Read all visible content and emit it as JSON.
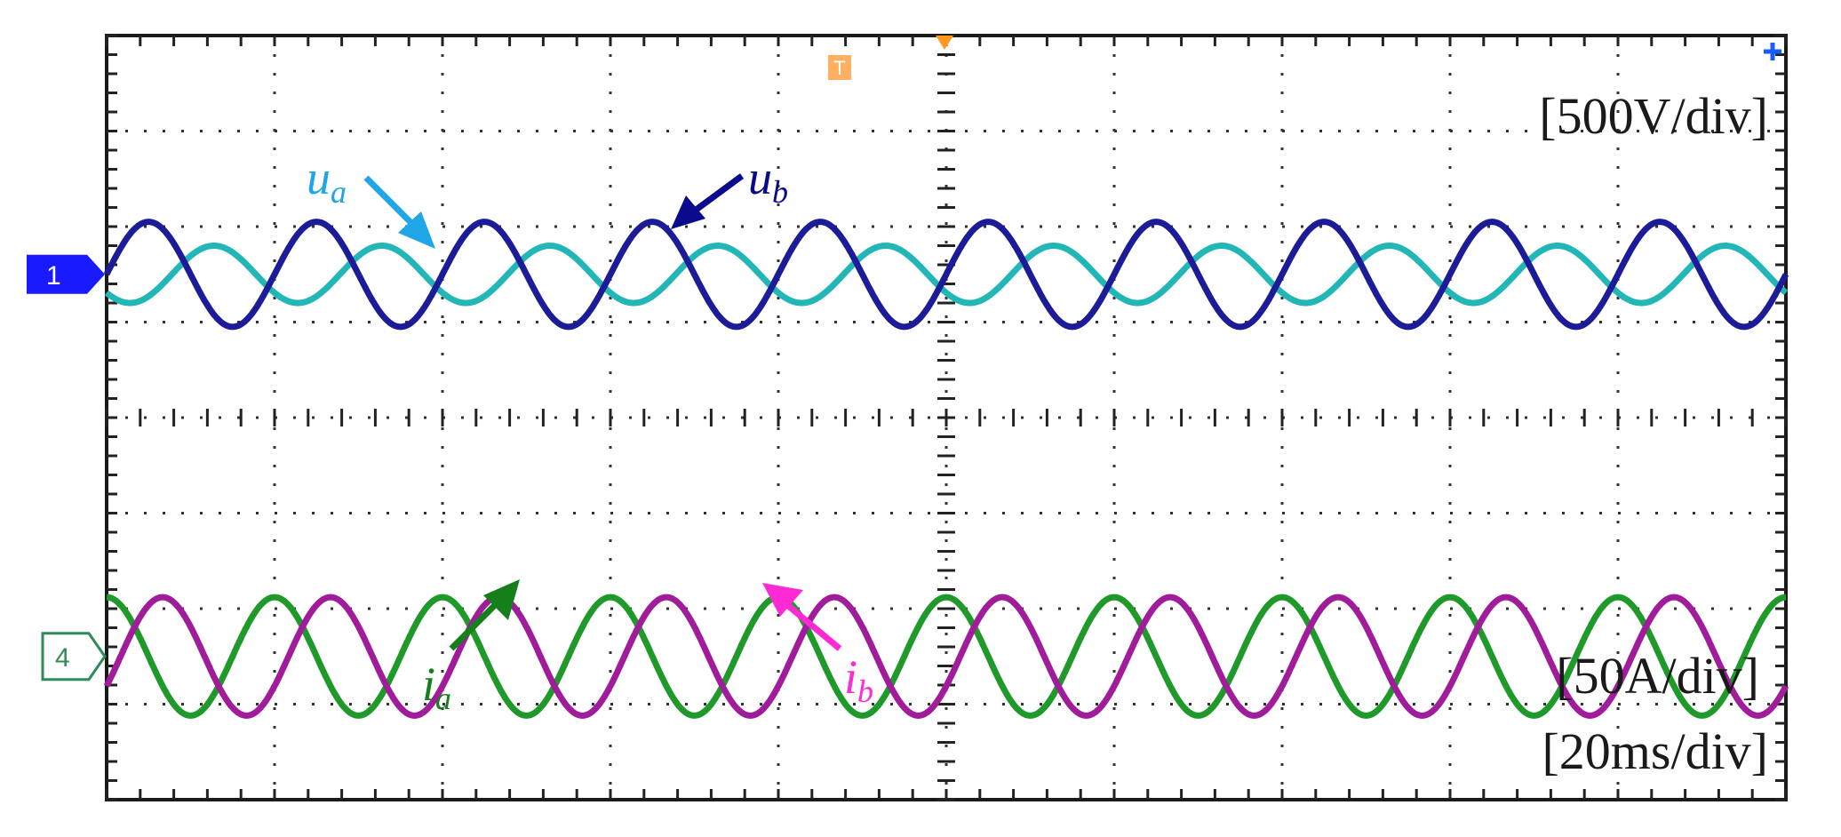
{
  "chart_data": {
    "type": "line",
    "x_unit": "ms",
    "grid": true,
    "divisions": {
      "x": 10,
      "y": 8
    },
    "scales": {
      "voltage": "[500V/div]",
      "current": "[50A/div]",
      "time": "[20ms/div]"
    },
    "channel_markers": [
      {
        "id": "1",
        "color": "#1a1aff",
        "level_div": 5.5
      },
      {
        "id": "4",
        "color": "#2e8b57",
        "level_div": 1.5
      }
    ],
    "series": [
      {
        "key": "ua",
        "symbol": "u",
        "sub": "a",
        "color": "#23b6b6",
        "label_color": "#1fa6e6",
        "offset_div": 5.5,
        "amplitude_div": 0.3,
        "frequency_hz": 50,
        "phase_deg": -140
      },
      {
        "key": "ub",
        "symbol": "u",
        "sub": "b",
        "color": "#1c1c99",
        "label_color": "#0a0a8c",
        "offset_div": 5.5,
        "amplitude_div": 0.55,
        "frequency_hz": 50,
        "phase_deg": 0
      },
      {
        "key": "ia",
        "symbol": "i",
        "sub": "a",
        "color": "#1f9a2a",
        "label_color": "#15801a",
        "offset_div": 1.5,
        "amplitude_div": 0.62,
        "frequency_hz": 50,
        "phase_deg": 90
      },
      {
        "key": "ib",
        "symbol": "i",
        "sub": "b",
        "color": "#a01c9a",
        "label_color": "#ff2ad4",
        "offset_div": 1.5,
        "amplitude_div": 0.62,
        "frequency_hz": 50,
        "phase_deg": -30
      }
    ]
  }
}
